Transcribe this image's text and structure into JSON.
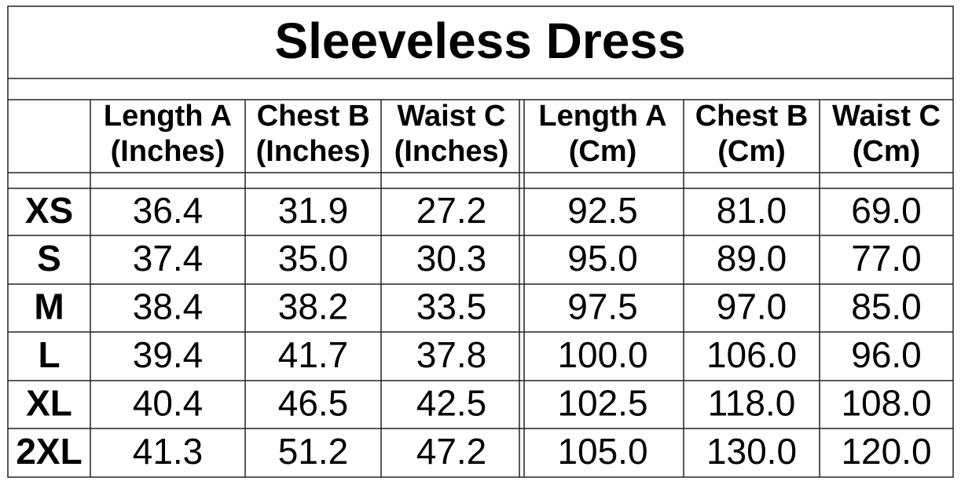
{
  "title": "Sleeveless Dress",
  "columns": [
    {
      "name": "Length A",
      "unit": "(Inches)"
    },
    {
      "name": "Chest B",
      "unit": "(Inches)"
    },
    {
      "name": "Waist C",
      "unit": "(Inches)"
    },
    {
      "name": "Length A",
      "unit": "(Cm)"
    },
    {
      "name": "Chest B",
      "unit": "(Cm)"
    },
    {
      "name": "Waist C",
      "unit": "(Cm)"
    }
  ],
  "rows": [
    {
      "size": "XS",
      "values": [
        "36.4",
        "31.9",
        "27.2",
        "92.5",
        "81.0",
        "69.0"
      ]
    },
    {
      "size": "S",
      "values": [
        "37.4",
        "35.0",
        "30.3",
        "95.0",
        "89.0",
        "77.0"
      ]
    },
    {
      "size": "M",
      "values": [
        "38.4",
        "38.2",
        "33.5",
        "97.5",
        "97.0",
        "85.0"
      ]
    },
    {
      "size": "L",
      "values": [
        "39.4",
        "41.7",
        "37.8",
        "100.0",
        "106.0",
        "96.0"
      ]
    },
    {
      "size": "XL",
      "values": [
        "40.4",
        "46.5",
        "42.5",
        "102.5",
        "118.0",
        "108.0"
      ]
    },
    {
      "size": "2XL",
      "values": [
        "41.3",
        "51.2",
        "47.2",
        "105.0",
        "130.0",
        "120.0"
      ]
    }
  ]
}
